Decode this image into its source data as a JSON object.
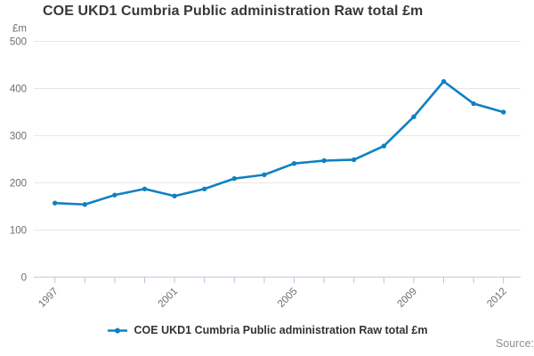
{
  "header": {
    "title": "COE UKD1 Cumbria Public administration Raw total £m"
  },
  "legend": {
    "label": "COE UKD1 Cumbria Public administration Raw total £m"
  },
  "footer": {
    "source_label": "Source:"
  },
  "colors": {
    "line": "#1080c2",
    "grid": "#e6e6e6",
    "axis": "#b9c7d7",
    "title_text": "#383838",
    "tick_text": "#6e6e6e",
    "legend_text": "#333333",
    "source_text": "#8f8f8f",
    "background": "#ffffff"
  },
  "chart_data": {
    "type": "line",
    "title": "COE UKD1 Cumbria Public administration Raw total £m",
    "x": [
      1997,
      1998,
      1999,
      2000,
      2001,
      2002,
      2003,
      2004,
      2005,
      2006,
      2007,
      2008,
      2009,
      2010,
      2011,
      2012
    ],
    "series": [
      {
        "name": "COE UKD1 Cumbria Public administration Raw total £m",
        "values": [
          157,
          154,
          174,
          187,
          172,
          187,
          209,
          217,
          241,
          247,
          249,
          278,
          340,
          415,
          368,
          350
        ]
      }
    ],
    "xlabel": "",
    "ylabel": "£m",
    "ylim": [
      0,
      500
    ],
    "yticks": [
      0,
      100,
      200,
      300,
      400,
      500
    ],
    "xtick_labels": [
      "1997",
      "2001",
      "2005",
      "2009",
      "2012"
    ],
    "grid": true,
    "legend_position": "bottom",
    "marker": "circle"
  }
}
